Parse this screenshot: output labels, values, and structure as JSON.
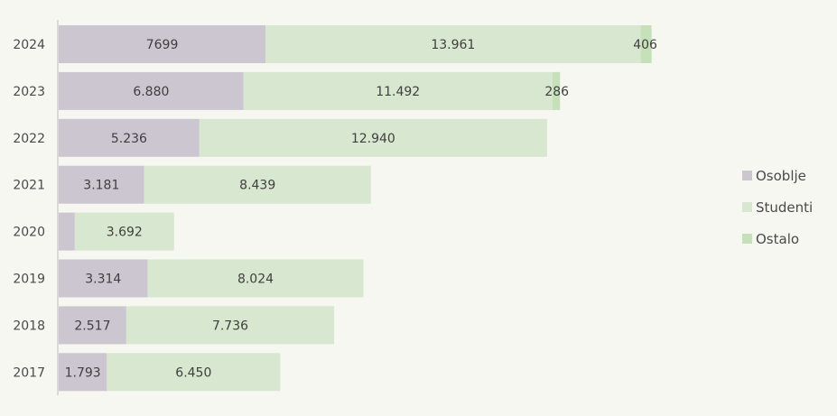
{
  "chart_data": {
    "type": "bar",
    "orientation": "horizontal",
    "stacked": true,
    "categories": [
      "2024",
      "2023",
      "2022",
      "2021",
      "2020",
      "2019",
      "2018",
      "2017"
    ],
    "series": [
      {
        "name": "Osoblje",
        "color": "#cbc6d0",
        "values": [
          7699,
          6880,
          5236,
          3181,
          600,
          3314,
          2517,
          1793
        ],
        "labels": [
          "7699",
          "6.880",
          "5.236",
          "3.181",
          "",
          "3.314",
          "2.517",
          "1.793"
        ]
      },
      {
        "name": "Studenti",
        "color": "#d8e7cf",
        "values": [
          13961,
          11492,
          12940,
          8439,
          3692,
          8024,
          7736,
          6450
        ],
        "labels": [
          "13.961",
          "11.492",
          "12.940",
          "8.439",
          "3.692",
          "8.024",
          "7.736",
          "6.450"
        ]
      },
      {
        "name": "Ostalo",
        "color": "#c6e0b9",
        "values": [
          406,
          286,
          0,
          0,
          0,
          0,
          0,
          0
        ],
        "labels": [
          "406",
          "286",
          "",
          "",
          "",
          "",
          "",
          ""
        ]
      }
    ],
    "xlim": [
      0,
      29000
    ],
    "grid": false,
    "legend_position": "right"
  }
}
